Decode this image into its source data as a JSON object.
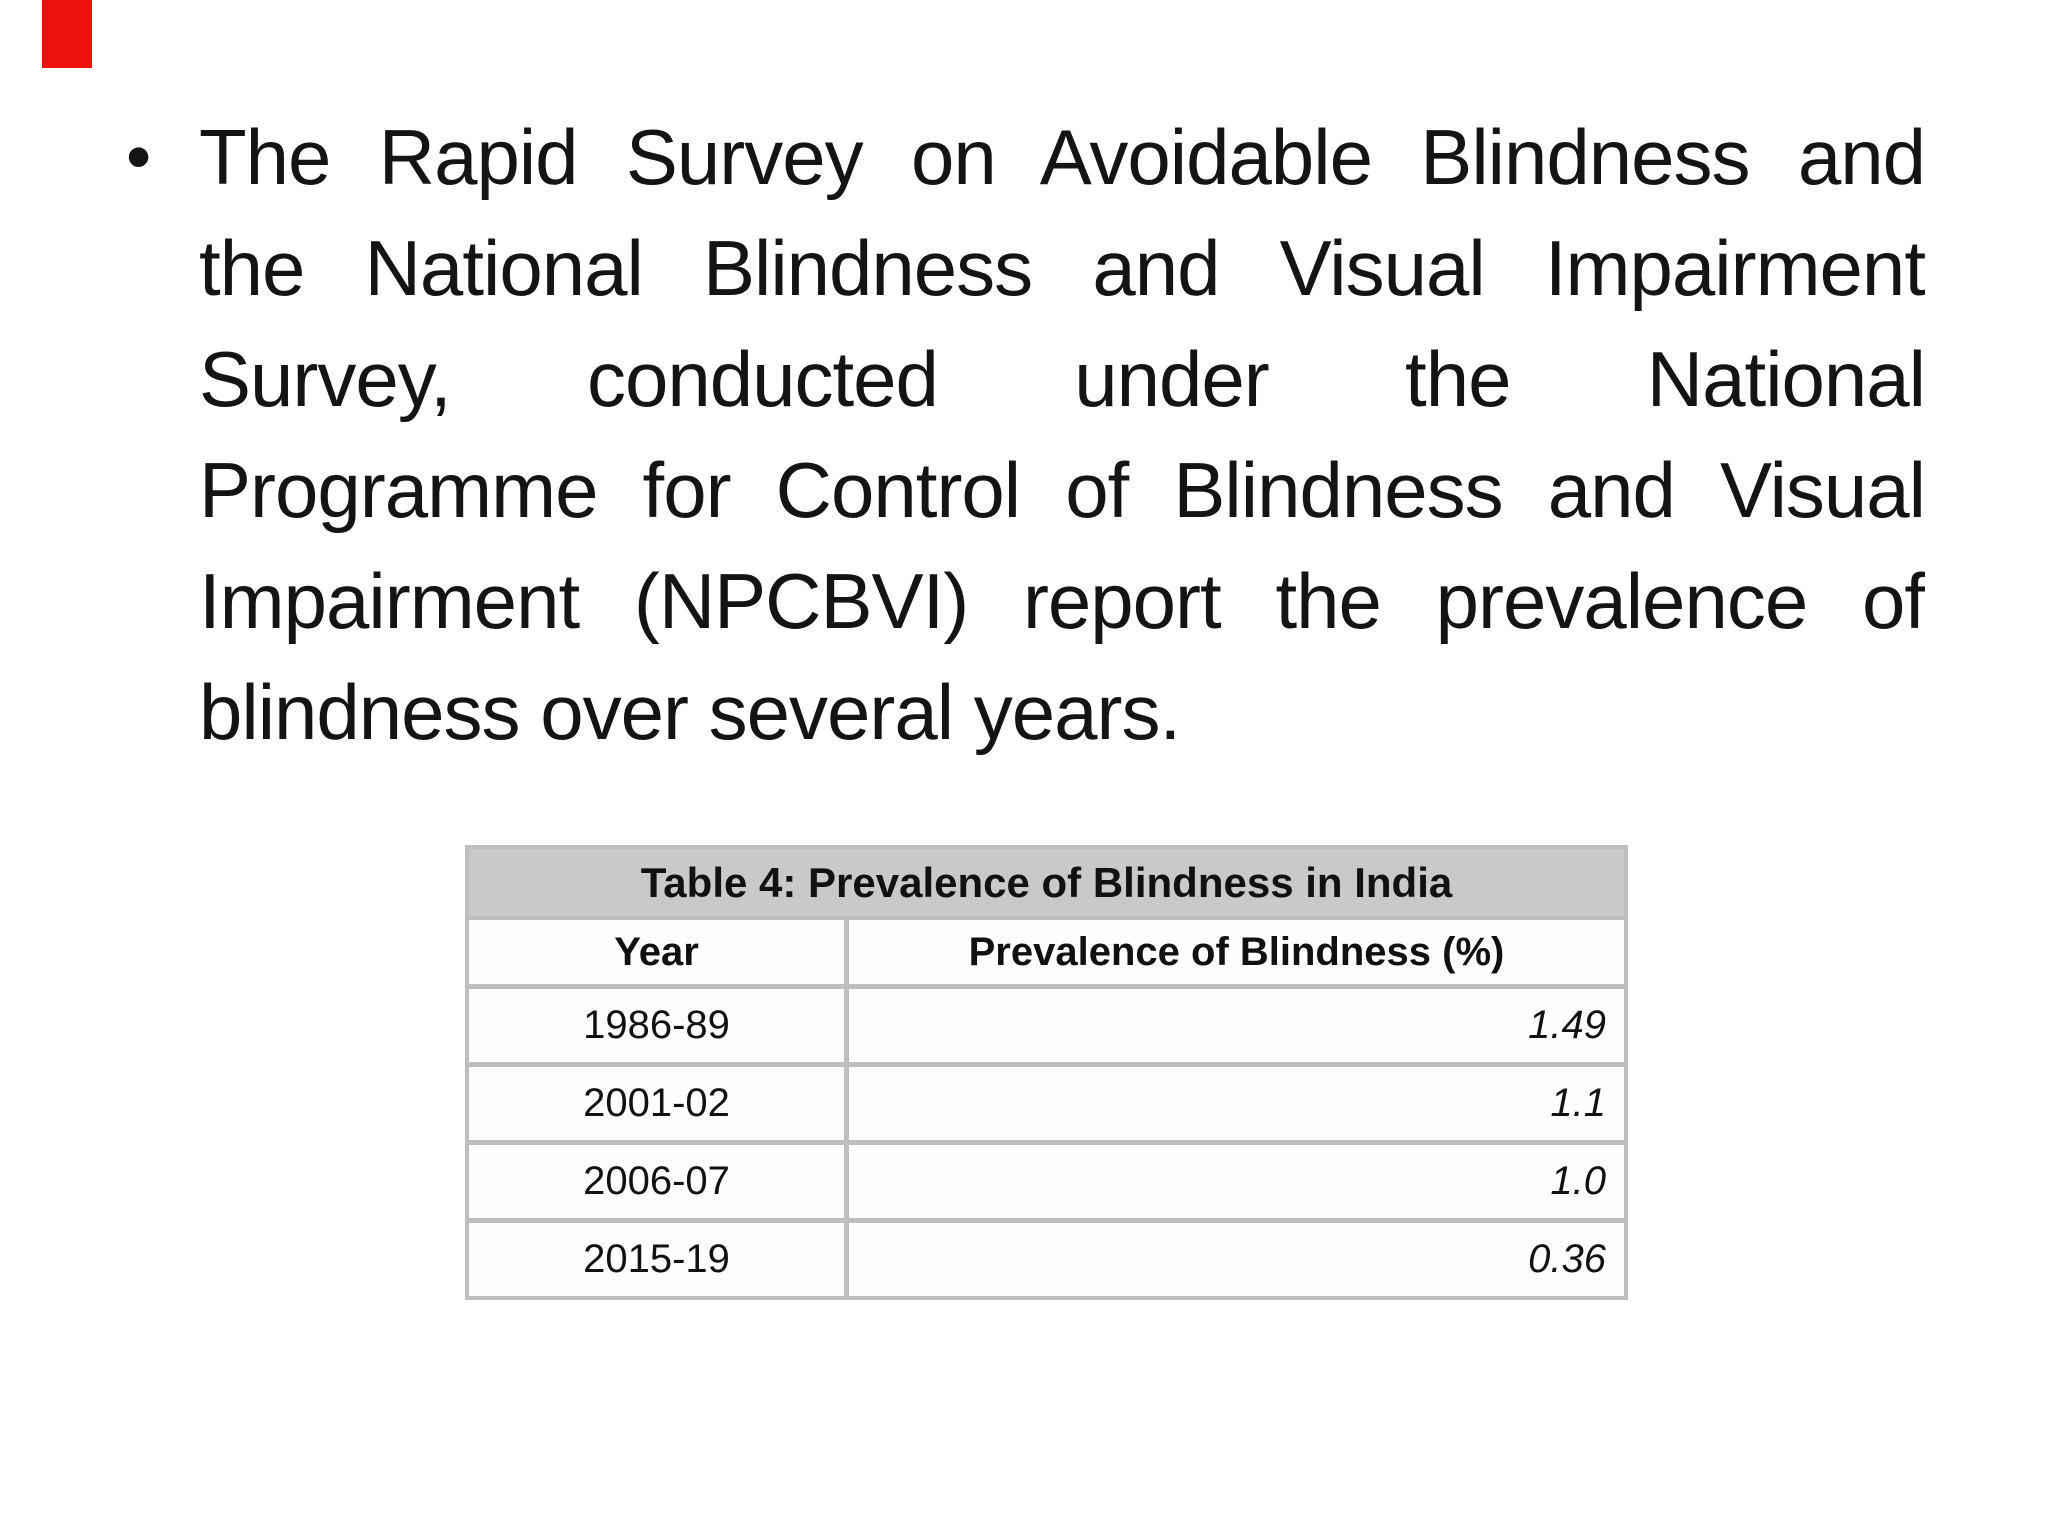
{
  "slide": {
    "bullet_marker": "•",
    "paragraph_lines": [
      "The Rapid Survey on Avoidable Blindness and",
      "the National Blindness and Visual Impairment",
      "Survey, conducted under the National",
      "Programme for Control of Blindness and Visual",
      "Impairment (NPCBVI) report the prevalence of",
      "blindness over several years."
    ],
    "paragraph_full_text": "The Rapid Survey on Avoidable Blindness and the National Blindness and Visual Impairment Survey, conducted under the National Programme for Control of Blindness and Visual Impairment (NPCBVI) report the prevalence of blindness over several years."
  },
  "table": {
    "title": "Table 4: Prevalence of Blindness in India",
    "columns": [
      "Year",
      "Prevalence of Blindness (%)"
    ],
    "rows": [
      {
        "year": "1986-89",
        "value": "1.49"
      },
      {
        "year": "2001-02",
        "value": "1.1"
      },
      {
        "year": "2006-07",
        "value": "1.0"
      },
      {
        "year": "2015-19",
        "value": "0.36"
      }
    ]
  },
  "colors": {
    "red_accent": "#ee100d",
    "table_frame": "#bebebe",
    "table_title_bg": "#c9c9c9",
    "cell_bg": "#fefefe",
    "text": "#141414"
  }
}
